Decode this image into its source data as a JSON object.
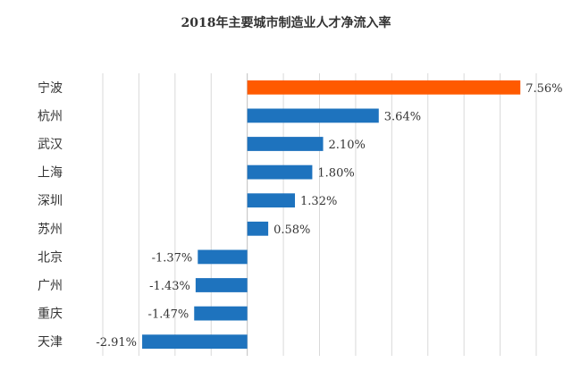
{
  "chart_data": {
    "type": "bar",
    "orientation": "horizontal",
    "title": "2018年主要城市制造业人才净流入率",
    "xlabel": "",
    "ylabel": "",
    "unit": "%",
    "xlim": [
      -4,
      8
    ],
    "grid": true,
    "legend": "none",
    "categories": [
      "宁波",
      "杭州",
      "武汉",
      "上海",
      "深圳",
      "苏州",
      "北京",
      "广州",
      "重庆",
      "天津"
    ],
    "values": [
      7.56,
      3.64,
      2.1,
      1.8,
      1.32,
      0.58,
      -1.37,
      -1.43,
      -1.47,
      -2.91
    ],
    "value_labels": [
      "7.56%",
      "3.64%",
      "2.10%",
      "1.80%",
      "1.32%",
      "0.58%",
      "-1.37%",
      "-1.43%",
      "-1.47%",
      "-2.91%"
    ],
    "bar_colors": [
      "#ff5a00",
      "#1e73be",
      "#1e73be",
      "#1e73be",
      "#1e73be",
      "#1e73be",
      "#1e73be",
      "#1e73be",
      "#1e73be",
      "#1e73be"
    ]
  }
}
